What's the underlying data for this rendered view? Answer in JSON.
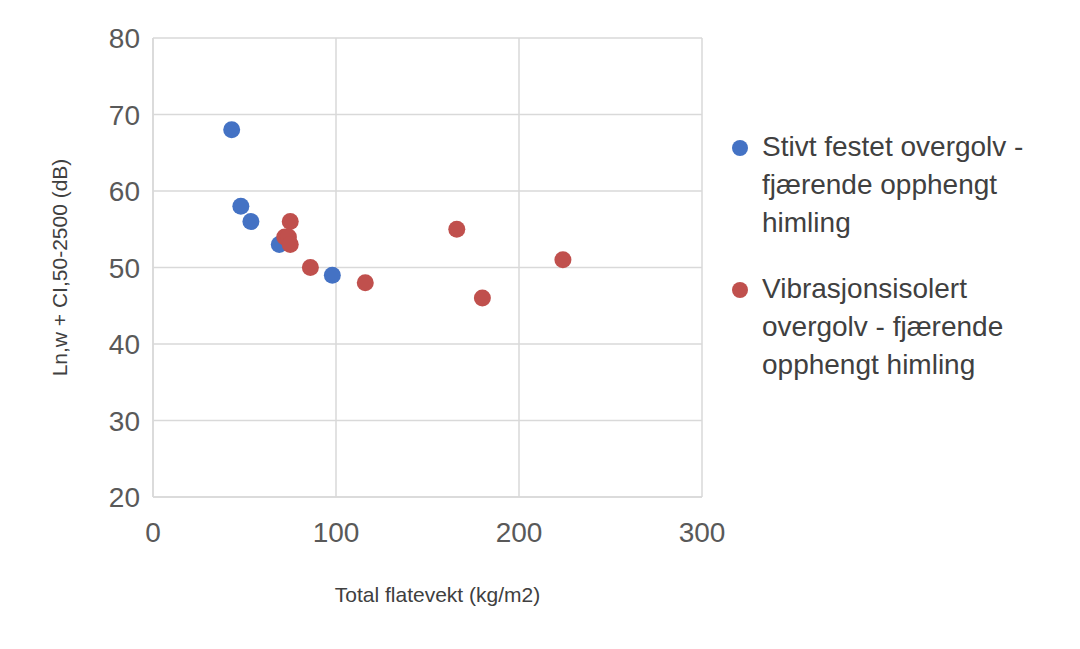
{
  "chart_data": {
    "type": "scatter",
    "x_label": "Total flatevekt (kg/m2)",
    "y_label": "Ln,w + CI,50-2500 (dB)",
    "xlim": [
      0,
      300
    ],
    "xticks": [
      0,
      100,
      200,
      300
    ],
    "ylim": [
      20,
      80
    ],
    "yticks": [
      20,
      30,
      40,
      50,
      60,
      70,
      80
    ],
    "grid": true,
    "legend": "right",
    "marker": "circle",
    "series": [
      {
        "name": "Stivt festet overgolv - fjærende opphengt himling",
        "color": "#4472c4",
        "x": [
          43,
          48,
          53.5,
          69,
          98
        ],
        "values": [
          68,
          58,
          56,
          53,
          49
        ]
      },
      {
        "name": "Vibrasjonsisolert overgolv - fjærende opphengt himling",
        "color": "#c0504d",
        "x": [
          72,
          74,
          75,
          75,
          86,
          116,
          166,
          180,
          224
        ],
        "values": [
          54,
          54,
          56,
          53,
          50,
          48,
          55,
          46,
          51
        ]
      }
    ]
  }
}
